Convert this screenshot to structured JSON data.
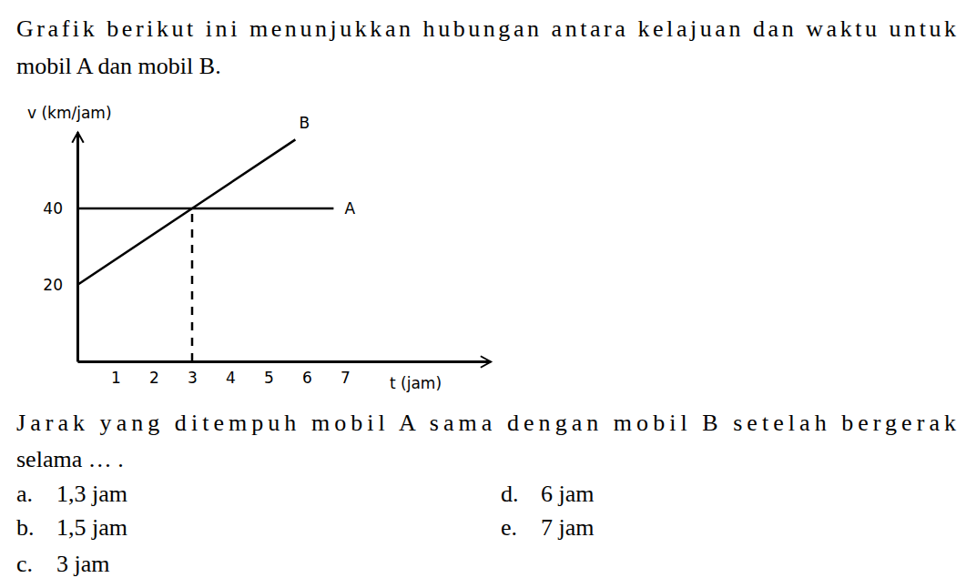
{
  "question": {
    "intro": [
      "Grafik berikut ini menunjukkan hubungan antara kelajuan dan waktu untuk",
      "mobil A dan mobil B."
    ],
    "prompt": [
      "Jarak yang ditempuh mobil A sama dengan mobil B setelah bergerak",
      "selama … ."
    ],
    "options": [
      {
        "letter": "a.",
        "text": "1,3 jam"
      },
      {
        "letter": "b.",
        "text": "1,5 jam"
      },
      {
        "letter": "c.",
        "text": "3 jam"
      },
      {
        "letter": "d.",
        "text": "6 jam"
      },
      {
        "letter": "e.",
        "text": "7 jam"
      }
    ]
  },
  "chart_data": {
    "type": "line",
    "x_label": "t (jam)",
    "y_label": "v (km/jam)",
    "xlim": [
      0,
      10.8
    ],
    "ylim": [
      0,
      60
    ],
    "xticks": [
      1,
      2,
      3,
      4,
      5,
      6,
      7
    ],
    "yticks": [
      20,
      40
    ],
    "grid": false,
    "series": [
      {
        "name": "B",
        "color": "#000000",
        "x": [
          0,
          3,
          5.7
        ],
        "values": [
          20,
          40,
          58
        ]
      },
      {
        "name": "A",
        "color": "#000000",
        "x": [
          0,
          3,
          6.7
        ],
        "values": [
          40,
          40,
          40
        ]
      }
    ],
    "dropline": {
      "x": 3,
      "y": 40,
      "line_style": "dashed"
    }
  }
}
